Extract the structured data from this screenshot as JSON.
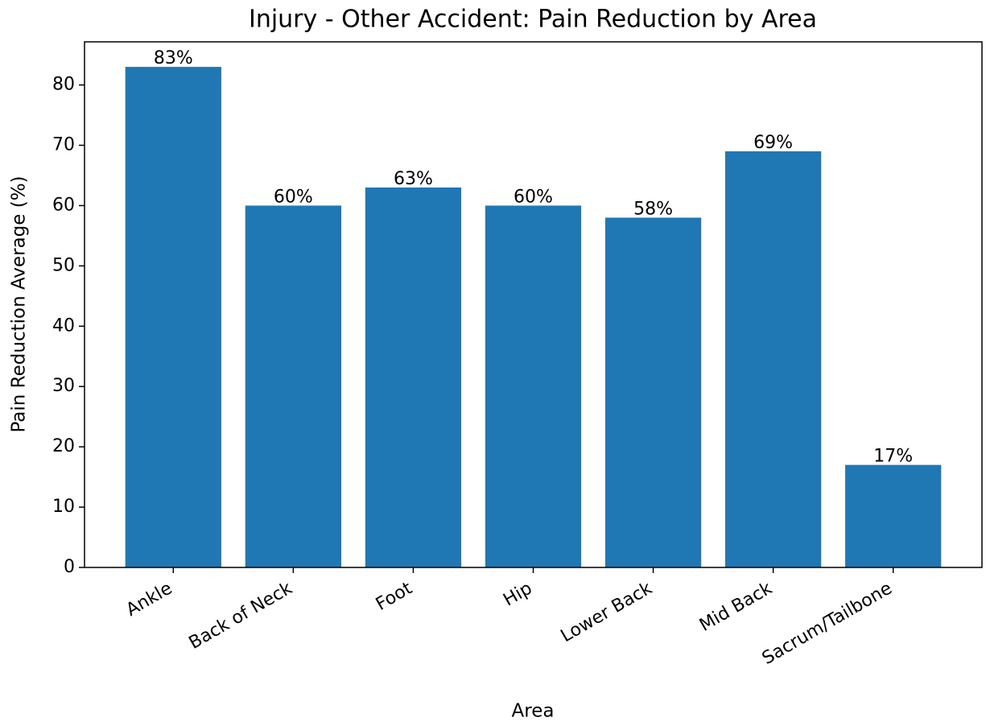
{
  "chart_data": {
    "type": "bar",
    "title": "Injury - Other Accident: Pain Reduction by Area",
    "x_label": "Area",
    "y_label": "Pain Reduction Average (%)",
    "categories": [
      "Ankle",
      "Back of Neck",
      "Foot",
      "Hip",
      "Lower Back",
      "Mid Back",
      "Sacrum/Tailbone"
    ],
    "values": [
      83,
      60,
      63,
      60,
      58,
      69,
      17
    ],
    "value_labels": [
      "83%",
      "60%",
      "63%",
      "60%",
      "58%",
      "69%",
      "17%"
    ],
    "color": "#1f77b4",
    "ylim": [
      0,
      87.15
    ],
    "yticks": [
      0,
      10,
      20,
      30,
      40,
      50,
      60,
      70,
      80
    ],
    "grid": false
  }
}
